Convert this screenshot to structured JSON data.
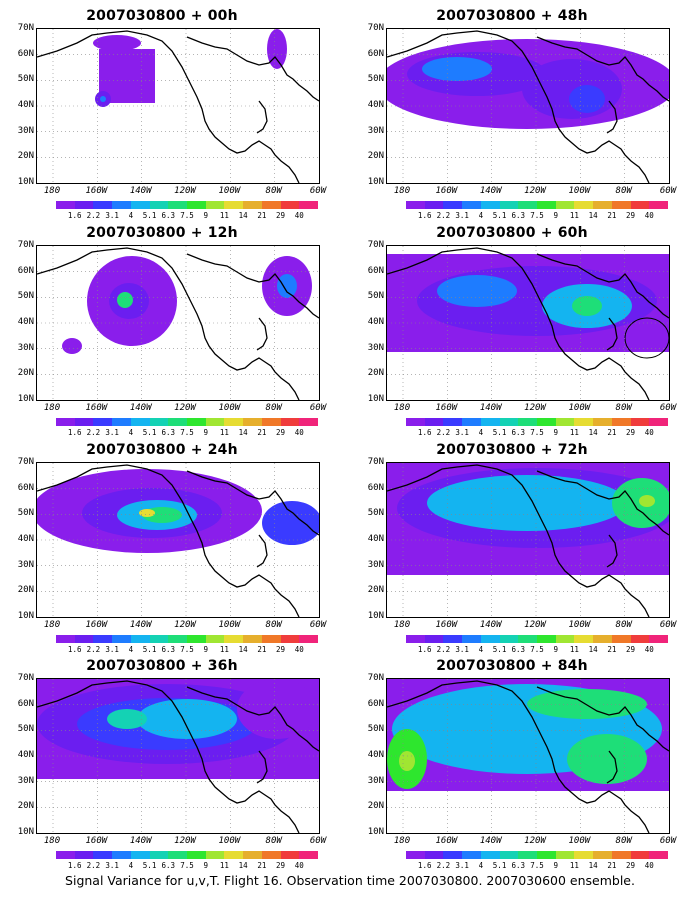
{
  "panels": [
    {
      "title": "2007030800 + 00h"
    },
    {
      "title": "2007030800 + 48h"
    },
    {
      "title": "2007030800 + 12h"
    },
    {
      "title": "2007030800 + 60h"
    },
    {
      "title": "2007030800 + 24h"
    },
    {
      "title": "2007030800 + 72h"
    },
    {
      "title": "2007030800 + 36h"
    },
    {
      "title": "2007030800 + 84h"
    }
  ],
  "lat_labels": [
    "70N",
    "60N",
    "50N",
    "40N",
    "30N",
    "20N",
    "10N"
  ],
  "lon_labels": [
    "180",
    "160W",
    "140W",
    "120W",
    "100W",
    "80W",
    "60W"
  ],
  "colorbar": {
    "labels": [
      "1.6",
      "2.2",
      "3.1",
      "4",
      "5.1",
      "6.3",
      "7.5",
      "9",
      "11",
      "14",
      "21",
      "29",
      "40"
    ],
    "colors": [
      "#8a1eeb",
      "#6b1ef0",
      "#3a3bff",
      "#1e7cff",
      "#14b4f0",
      "#14d2b4",
      "#1ede78",
      "#2ee62e",
      "#a0e632",
      "#e6dc32",
      "#e6af2d",
      "#f07828",
      "#f03c3c",
      "#f0247a"
    ]
  },
  "caption": "Signal Variance for u,v,T. Flight 16. Observation time 2007030800. 2007030600 ensemble."
}
